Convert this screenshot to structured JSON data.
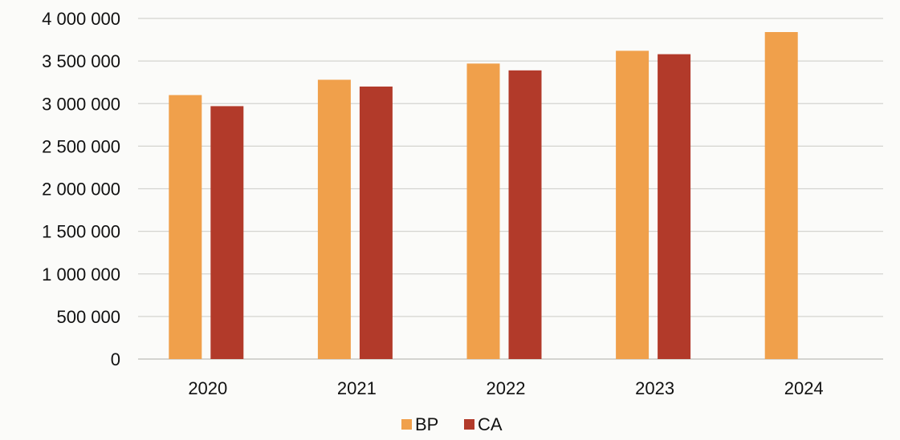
{
  "chart_data": {
    "type": "bar",
    "categories": [
      "2020",
      "2021",
      "2022",
      "2023",
      "2024"
    ],
    "series": [
      {
        "name": "BP",
        "color": "#f0a04b",
        "values": [
          3100000,
          3280000,
          3470000,
          3620000,
          3840000
        ]
      },
      {
        "name": "CA",
        "color": "#b23a2a",
        "values": [
          2970000,
          3200000,
          3390000,
          3580000,
          null
        ]
      }
    ],
    "ylim": [
      0,
      4000000
    ],
    "yticks": [
      "0",
      "500 000",
      "1 000 000",
      "1 500 000",
      "2 000 000",
      "2 500 000",
      "3 000 000",
      "3 500 000",
      "4 000 000"
    ],
    "ytick_values": [
      0,
      500000,
      1000000,
      1500000,
      2000000,
      2500000,
      3000000,
      3500000,
      4000000
    ],
    "grid": true,
    "legend_position": "bottom-center",
    "title": "",
    "xlabel": "",
    "ylabel": ""
  }
}
